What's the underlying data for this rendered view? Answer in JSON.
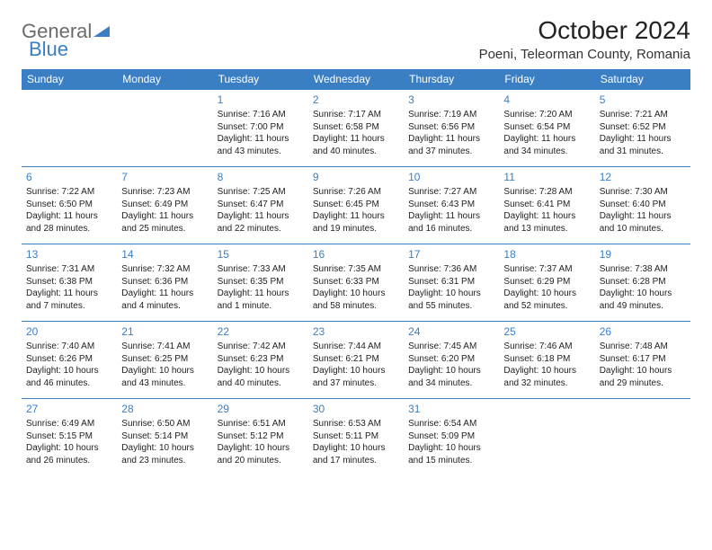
{
  "logo": {
    "text1": "General",
    "text2": "Blue"
  },
  "title": "October 2024",
  "location": "Poeni, Teleorman County, Romania",
  "colors": {
    "header_bg": "#3a7fc4",
    "header_fg": "#ffffff",
    "daynum": "#3a7fc4",
    "row_border": "#3a7fc4",
    "body_text": "#333333",
    "logo_gray": "#6b6b6b",
    "logo_blue": "#3a7fc4",
    "background": "#ffffff"
  },
  "weekdays": [
    "Sunday",
    "Monday",
    "Tuesday",
    "Wednesday",
    "Thursday",
    "Friday",
    "Saturday"
  ],
  "weeks": [
    [
      null,
      null,
      {
        "n": "1",
        "sr": "7:16 AM",
        "ss": "7:00 PM",
        "dl": "11 hours and 43 minutes."
      },
      {
        "n": "2",
        "sr": "7:17 AM",
        "ss": "6:58 PM",
        "dl": "11 hours and 40 minutes."
      },
      {
        "n": "3",
        "sr": "7:19 AM",
        "ss": "6:56 PM",
        "dl": "11 hours and 37 minutes."
      },
      {
        "n": "4",
        "sr": "7:20 AM",
        "ss": "6:54 PM",
        "dl": "11 hours and 34 minutes."
      },
      {
        "n": "5",
        "sr": "7:21 AM",
        "ss": "6:52 PM",
        "dl": "11 hours and 31 minutes."
      }
    ],
    [
      {
        "n": "6",
        "sr": "7:22 AM",
        "ss": "6:50 PM",
        "dl": "11 hours and 28 minutes."
      },
      {
        "n": "7",
        "sr": "7:23 AM",
        "ss": "6:49 PM",
        "dl": "11 hours and 25 minutes."
      },
      {
        "n": "8",
        "sr": "7:25 AM",
        "ss": "6:47 PM",
        "dl": "11 hours and 22 minutes."
      },
      {
        "n": "9",
        "sr": "7:26 AM",
        "ss": "6:45 PM",
        "dl": "11 hours and 19 minutes."
      },
      {
        "n": "10",
        "sr": "7:27 AM",
        "ss": "6:43 PM",
        "dl": "11 hours and 16 minutes."
      },
      {
        "n": "11",
        "sr": "7:28 AM",
        "ss": "6:41 PM",
        "dl": "11 hours and 13 minutes."
      },
      {
        "n": "12",
        "sr": "7:30 AM",
        "ss": "6:40 PM",
        "dl": "11 hours and 10 minutes."
      }
    ],
    [
      {
        "n": "13",
        "sr": "7:31 AM",
        "ss": "6:38 PM",
        "dl": "11 hours and 7 minutes."
      },
      {
        "n": "14",
        "sr": "7:32 AM",
        "ss": "6:36 PM",
        "dl": "11 hours and 4 minutes."
      },
      {
        "n": "15",
        "sr": "7:33 AM",
        "ss": "6:35 PM",
        "dl": "11 hours and 1 minute."
      },
      {
        "n": "16",
        "sr": "7:35 AM",
        "ss": "6:33 PM",
        "dl": "10 hours and 58 minutes."
      },
      {
        "n": "17",
        "sr": "7:36 AM",
        "ss": "6:31 PM",
        "dl": "10 hours and 55 minutes."
      },
      {
        "n": "18",
        "sr": "7:37 AM",
        "ss": "6:29 PM",
        "dl": "10 hours and 52 minutes."
      },
      {
        "n": "19",
        "sr": "7:38 AM",
        "ss": "6:28 PM",
        "dl": "10 hours and 49 minutes."
      }
    ],
    [
      {
        "n": "20",
        "sr": "7:40 AM",
        "ss": "6:26 PM",
        "dl": "10 hours and 46 minutes."
      },
      {
        "n": "21",
        "sr": "7:41 AM",
        "ss": "6:25 PM",
        "dl": "10 hours and 43 minutes."
      },
      {
        "n": "22",
        "sr": "7:42 AM",
        "ss": "6:23 PM",
        "dl": "10 hours and 40 minutes."
      },
      {
        "n": "23",
        "sr": "7:44 AM",
        "ss": "6:21 PM",
        "dl": "10 hours and 37 minutes."
      },
      {
        "n": "24",
        "sr": "7:45 AM",
        "ss": "6:20 PM",
        "dl": "10 hours and 34 minutes."
      },
      {
        "n": "25",
        "sr": "7:46 AM",
        "ss": "6:18 PM",
        "dl": "10 hours and 32 minutes."
      },
      {
        "n": "26",
        "sr": "7:48 AM",
        "ss": "6:17 PM",
        "dl": "10 hours and 29 minutes."
      }
    ],
    [
      {
        "n": "27",
        "sr": "6:49 AM",
        "ss": "5:15 PM",
        "dl": "10 hours and 26 minutes."
      },
      {
        "n": "28",
        "sr": "6:50 AM",
        "ss": "5:14 PM",
        "dl": "10 hours and 23 minutes."
      },
      {
        "n": "29",
        "sr": "6:51 AM",
        "ss": "5:12 PM",
        "dl": "10 hours and 20 minutes."
      },
      {
        "n": "30",
        "sr": "6:53 AM",
        "ss": "5:11 PM",
        "dl": "10 hours and 17 minutes."
      },
      {
        "n": "31",
        "sr": "6:54 AM",
        "ss": "5:09 PM",
        "dl": "10 hours and 15 minutes."
      },
      null,
      null
    ]
  ],
  "labels": {
    "sunrise": "Sunrise:",
    "sunset": "Sunset:",
    "daylight": "Daylight:"
  }
}
